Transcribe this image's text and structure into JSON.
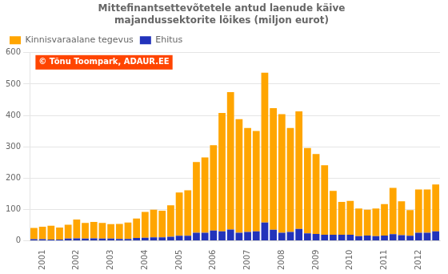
{
  "chart_data": {
    "type": "bar",
    "title": "Mittefinantsettevõtetele antud laenude käive\nmajandussektorite lõikes (miljon eurot)",
    "categories": [
      null,
      "2001",
      null,
      null,
      null,
      "2002",
      null,
      null,
      null,
      "2003",
      null,
      null,
      null,
      "2004",
      null,
      null,
      null,
      "2005",
      null,
      null,
      null,
      "2006",
      null,
      null,
      null,
      "2007",
      null,
      null,
      null,
      "2008",
      null,
      null,
      null,
      "2009",
      null,
      null,
      null,
      "2010",
      null,
      null,
      null,
      "2011",
      null,
      null,
      null,
      "2012",
      null,
      null
    ],
    "series": [
      {
        "name": "Ehitus",
        "color": "#2233bb",
        "values": [
          5,
          5,
          4,
          4,
          7,
          8,
          7,
          8,
          7,
          7,
          6,
          6,
          9,
          10,
          11,
          11,
          13,
          16,
          16,
          26,
          26,
          33,
          30,
          36,
          26,
          28,
          30,
          58,
          35,
          26,
          28,
          38,
          24,
          22,
          19,
          19,
          19,
          19,
          15,
          17,
          15,
          17,
          21,
          18,
          16,
          26,
          26,
          30
        ]
      },
      {
        "name": "Kinnisvaraalane tegevus",
        "color": "#FFA500",
        "values": [
          36,
          40,
          44,
          38,
          44,
          60,
          50,
          52,
          50,
          46,
          48,
          52,
          62,
          82,
          88,
          85,
          100,
          138,
          145,
          225,
          240,
          272,
          378,
          438,
          362,
          332,
          320,
          478,
          388,
          378,
          332,
          375,
          272,
          255,
          222,
          140,
          105,
          108,
          88,
          82,
          88,
          100,
          148,
          108,
          82,
          138,
          138,
          150
        ]
      }
    ],
    "stacked": true,
    "ylim": [
      0,
      600
    ],
    "yticks": [
      0,
      100,
      200,
      300,
      400,
      500,
      600
    ],
    "grid": true,
    "legend": "upper left",
    "annotations": [
      "© Tõnu Toompark, ADAUR.EE"
    ]
  }
}
